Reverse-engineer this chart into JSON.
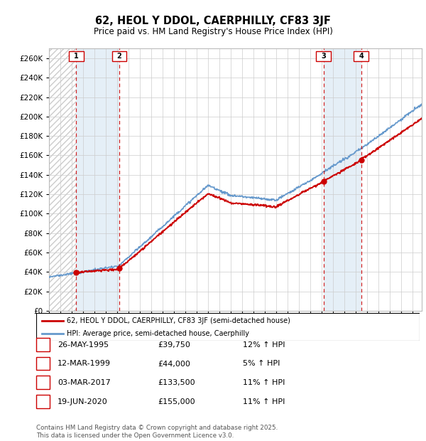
{
  "title": "62, HEOL Y DDOL, CAERPHILLY, CF83 3JF",
  "subtitle": "Price paid vs. HM Land Registry's House Price Index (HPI)",
  "ylim": [
    0,
    270000
  ],
  "ytick_values": [
    0,
    20000,
    40000,
    60000,
    80000,
    100000,
    120000,
    140000,
    160000,
    180000,
    200000,
    220000,
    240000,
    260000
  ],
  "xlim_start": 1993.0,
  "xlim_end": 2025.8,
  "sales": [
    {
      "label": "1",
      "date_num": 1995.39,
      "price": 39750
    },
    {
      "label": "2",
      "date_num": 1999.19,
      "price": 44000
    },
    {
      "label": "3",
      "date_num": 2017.17,
      "price": 133500
    },
    {
      "label": "4",
      "date_num": 2020.46,
      "price": 155000
    }
  ],
  "hpi_line_color": "#6699cc",
  "hpi_fill_color": "#cce0f0",
  "price_color": "#cc0000",
  "sale_marker_color": "#cc0000",
  "vline_color": "#cc0000",
  "grid_color": "#cccccc",
  "legend_house_label": "62, HEOL Y DDOL, CAERPHILLY, CF83 3JF (semi-detached house)",
  "legend_hpi_label": "HPI: Average price, semi-detached house, Caerphilly",
  "table_rows": [
    {
      "num": "1",
      "date": "26-MAY-1995",
      "price": "£39,750",
      "hpi": "12% ↑ HPI"
    },
    {
      "num": "2",
      "date": "12-MAR-1999",
      "price": "£44,000",
      "hpi": "5% ↑ HPI"
    },
    {
      "num": "3",
      "date": "03-MAR-2017",
      "price": "£133,500",
      "hpi": "11% ↑ HPI"
    },
    {
      "num": "4",
      "date": "19-JUN-2020",
      "price": "£155,000",
      "hpi": "11% ↑ HPI"
    }
  ],
  "footnote": "Contains HM Land Registry data © Crown copyright and database right 2025.\nThis data is licensed under the Open Government Licence v3.0."
}
